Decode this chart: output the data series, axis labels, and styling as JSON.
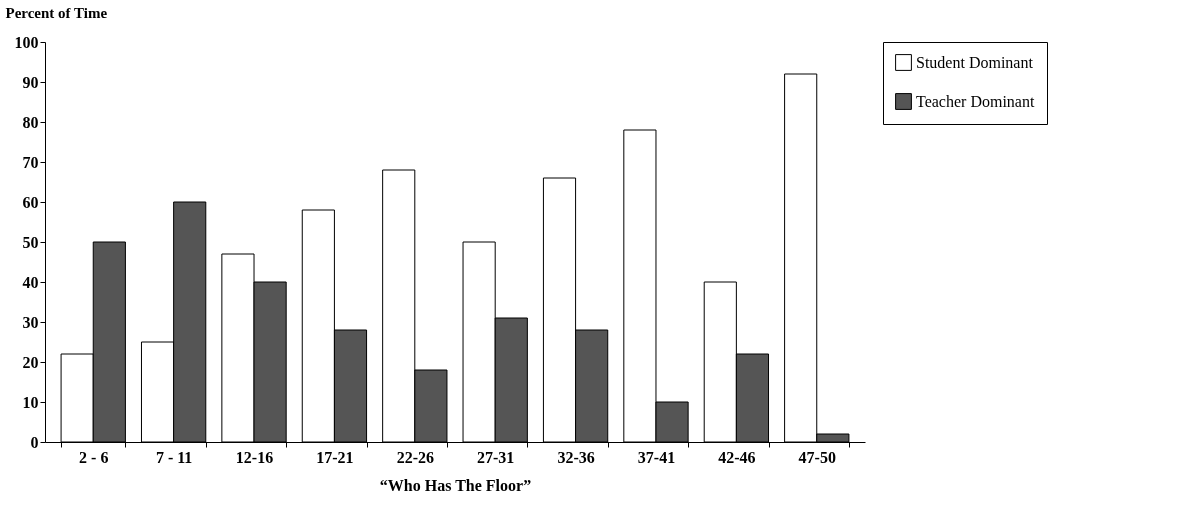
{
  "chart_data": {
    "type": "bar",
    "ylabel": "Percent of Time",
    "xlabel": "“Who Has The Floor”",
    "categories": [
      "2 - 6",
      "7 - 11",
      "12-16",
      "17-21",
      "22-26",
      "27-31",
      "32-36",
      "37-41",
      "42-46",
      "47-50"
    ],
    "series": [
      {
        "name": "Student Dominant",
        "color": "#ffffff",
        "values": [
          22,
          25,
          47,
          58,
          68,
          50,
          66,
          78,
          40,
          92
        ]
      },
      {
        "name": "Teacher Dominant",
        "color": "#555555",
        "values": [
          50,
          60,
          40,
          28,
          18,
          31,
          28,
          10,
          22,
          2
        ]
      }
    ],
    "ylim": [
      0,
      100
    ],
    "yticks": [
      0,
      10,
      20,
      30,
      40,
      50,
      60,
      70,
      80,
      90,
      100
    ],
    "grid": false,
    "legend": "right"
  }
}
